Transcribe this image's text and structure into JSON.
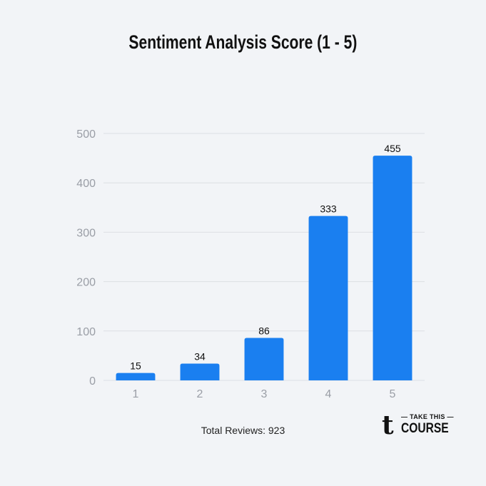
{
  "chart_data": {
    "type": "bar",
    "title": "Sentiment Analysis Score (1 - 5)",
    "xlabel": "",
    "ylabel": "",
    "categories": [
      "1",
      "2",
      "3",
      "4",
      "5"
    ],
    "values": [
      15,
      34,
      86,
      333,
      455
    ],
    "data_labels": [
      "15",
      "34",
      "86",
      "333",
      "455"
    ],
    "ylim": [
      0,
      500
    ],
    "yticks": [
      "0",
      "100",
      "200",
      "300",
      "400",
      "500"
    ],
    "grid": true,
    "legend": "none",
    "bar_color": "#1a7ff0"
  },
  "footer": {
    "total_reviews": "Total Reviews: 923"
  },
  "logo": {
    "top_text": "TAKE THIS",
    "bottom_text": "COURSE",
    "mark_glyph": "t"
  },
  "colors": {
    "background": "#f2f4f7",
    "bar": "#1a7ff0",
    "gridline": "#dcdfe4",
    "tick_text": "#9a9ea6"
  }
}
